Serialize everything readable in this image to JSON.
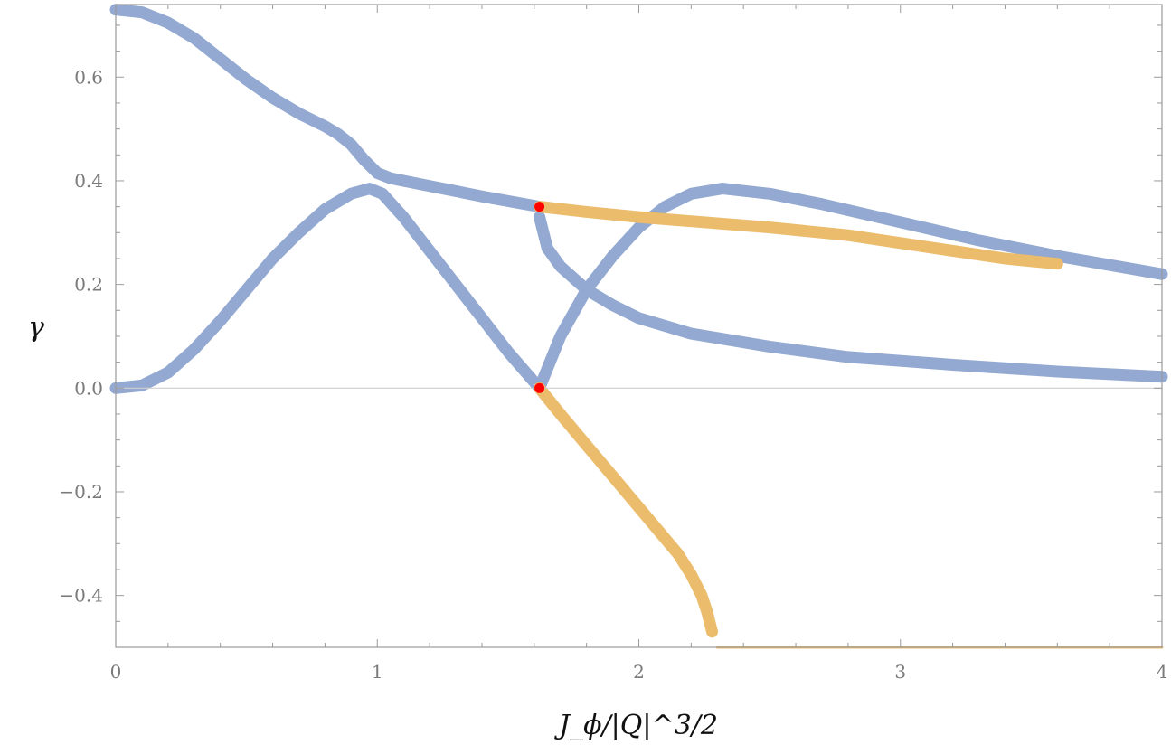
{
  "chart_data": {
    "type": "scatter",
    "title": "",
    "xlabel": "J_ϕ/|Q|^3/2",
    "ylabel": "γ",
    "xlim": [
      0,
      4
    ],
    "ylim": [
      -0.5,
      0.74
    ],
    "grid": false,
    "legend": "none",
    "x_ticks": [
      {
        "value": 0,
        "label": "0"
      },
      {
        "value": 1,
        "label": "1"
      },
      {
        "value": 2,
        "label": "2"
      },
      {
        "value": 3,
        "label": "3"
      },
      {
        "value": 4,
        "label": "4"
      }
    ],
    "y_ticks": [
      {
        "value": -0.4,
        "label": "−0.4"
      },
      {
        "value": -0.2,
        "label": "−0.2"
      },
      {
        "value": 0.0,
        "label": "0.0"
      },
      {
        "value": 0.2,
        "label": "0.2"
      },
      {
        "value": 0.4,
        "label": "0.4"
      },
      {
        "value": 0.6,
        "label": "0.6"
      }
    ],
    "series": [
      {
        "color": "#93a9d1",
        "points": [
          [
            0,
            0.73
          ],
          [
            0.1,
            0.725
          ],
          [
            0.2,
            0.705
          ],
          [
            0.3,
            0.675
          ],
          [
            0.4,
            0.635
          ],
          [
            0.5,
            0.595
          ],
          [
            0.6,
            0.56
          ],
          [
            0.7,
            0.53
          ],
          [
            0.8,
            0.505
          ],
          [
            0.85,
            0.49
          ],
          [
            0.9,
            0.47
          ],
          [
            0.95,
            0.44
          ],
          [
            1.0,
            0.415
          ],
          [
            1.05,
            0.405
          ],
          [
            1.2,
            0.39
          ],
          [
            1.4,
            0.37
          ],
          [
            1.62,
            0.35
          ]
        ]
      },
      {
        "color": "#93a9d1",
        "points": [
          [
            0,
            0.0
          ],
          [
            0.1,
            0.005
          ],
          [
            0.2,
            0.03
          ],
          [
            0.3,
            0.075
          ],
          [
            0.4,
            0.13
          ],
          [
            0.5,
            0.19
          ],
          [
            0.6,
            0.25
          ],
          [
            0.7,
            0.3
          ],
          [
            0.8,
            0.345
          ],
          [
            0.9,
            0.375
          ],
          [
            0.97,
            0.385
          ],
          [
            1.02,
            0.375
          ],
          [
            1.1,
            0.33
          ],
          [
            1.2,
            0.265
          ],
          [
            1.3,
            0.2
          ],
          [
            1.4,
            0.135
          ],
          [
            1.5,
            0.07
          ],
          [
            1.62,
            0.0
          ]
        ]
      },
      {
        "color": "#93a9d1",
        "points": [
          [
            1.62,
            0.0
          ],
          [
            1.7,
            0.1
          ],
          [
            1.8,
            0.19
          ],
          [
            1.9,
            0.255
          ],
          [
            2.0,
            0.31
          ],
          [
            2.1,
            0.35
          ],
          [
            2.2,
            0.375
          ],
          [
            2.32,
            0.385
          ],
          [
            2.5,
            0.375
          ],
          [
            2.7,
            0.355
          ],
          [
            3.0,
            0.32
          ],
          [
            3.3,
            0.285
          ],
          [
            3.6,
            0.255
          ],
          [
            4.0,
            0.22
          ]
        ]
      },
      {
        "color": "#93a9d1",
        "points": [
          [
            1.62,
            0.33
          ],
          [
            1.65,
            0.27
          ],
          [
            1.7,
            0.235
          ],
          [
            1.8,
            0.19
          ],
          [
            1.9,
            0.16
          ],
          [
            2.0,
            0.135
          ],
          [
            2.2,
            0.105
          ],
          [
            2.5,
            0.08
          ],
          [
            2.8,
            0.06
          ],
          [
            3.2,
            0.045
          ],
          [
            3.6,
            0.032
          ],
          [
            4.0,
            0.022
          ]
        ]
      },
      {
        "color": "#ebbc6c",
        "points": [
          [
            1.62,
            0.35
          ],
          [
            1.8,
            0.34
          ],
          [
            2.0,
            0.33
          ],
          [
            2.2,
            0.322
          ],
          [
            2.5,
            0.31
          ],
          [
            2.8,
            0.295
          ],
          [
            3.0,
            0.28
          ],
          [
            3.2,
            0.265
          ],
          [
            3.4,
            0.25
          ],
          [
            3.6,
            0.24
          ]
        ]
      },
      {
        "color": "#ebbc6c",
        "points": [
          [
            1.62,
            0.0
          ],
          [
            1.7,
            -0.05
          ],
          [
            1.8,
            -0.11
          ],
          [
            1.9,
            -0.17
          ],
          [
            2.0,
            -0.23
          ],
          [
            2.1,
            -0.29
          ],
          [
            2.15,
            -0.32
          ],
          [
            2.2,
            -0.36
          ],
          [
            2.24,
            -0.4
          ],
          [
            2.26,
            -0.43
          ],
          [
            2.27,
            -0.45
          ],
          [
            2.28,
            -0.47
          ]
        ]
      },
      {
        "color": "#ebbc6c",
        "points": [
          [
            2.3,
            -0.5
          ],
          [
            4.0,
            -0.5
          ]
        ]
      }
    ],
    "highlight_points": {
      "color": "#ff0000",
      "points": [
        [
          1.62,
          0.35
        ],
        [
          1.62,
          0.0
        ]
      ]
    }
  }
}
